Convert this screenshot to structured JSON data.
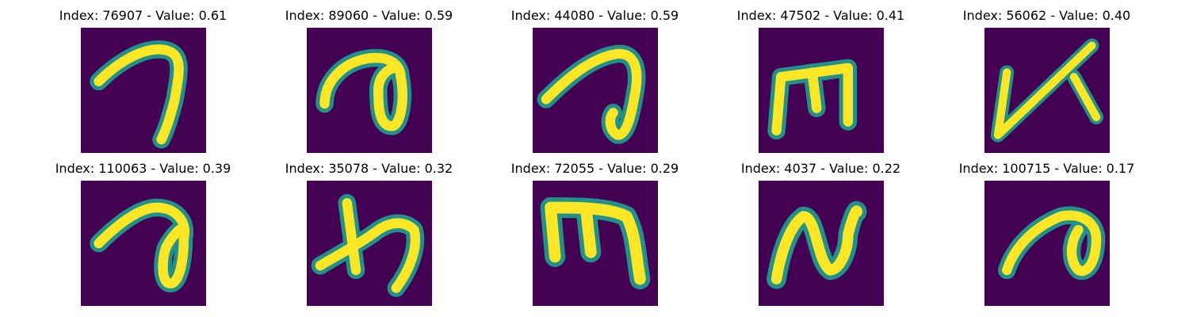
{
  "colors": {
    "background": "#440154",
    "low": "#3b528b",
    "mid": "#21918c",
    "high": "#5ec962",
    "peak": "#fde725"
  },
  "panels": [
    {
      "title": "Index: 76907 - Value: 0.61",
      "shape": "digit-seven-stroke-icon"
    },
    {
      "title": "Index: 89060 - Value: 0.59",
      "shape": "curl-loop-stroke-icon"
    },
    {
      "title": "Index: 44080 - Value: 0.59",
      "shape": "hook-loop-stroke-icon"
    },
    {
      "title": "Index: 47502 - Value: 0.41",
      "shape": "m-shape-stroke-icon"
    },
    {
      "title": "Index: 56062 - Value: 0.40",
      "shape": "k-shape-stroke-icon"
    },
    {
      "title": "Index: 110063 - Value: 0.39",
      "shape": "curl-loop-stroke-icon"
    },
    {
      "title": "Index: 35078 - Value: 0.32",
      "shape": "cross-hook-stroke-icon"
    },
    {
      "title": "Index: 72055 - Value: 0.29",
      "shape": "m-shape-stroke-icon"
    },
    {
      "title": "Index: 4037 - Value: 0.22",
      "shape": "n-zigzag-stroke-icon"
    },
    {
      "title": "Index: 100715 - Value: 0.17",
      "shape": "small-loop-stroke-icon"
    }
  ]
}
